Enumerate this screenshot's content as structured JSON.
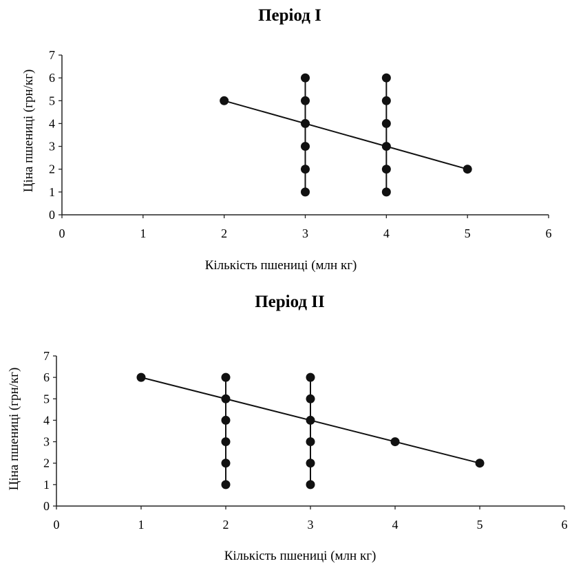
{
  "chart_data": [
    {
      "type": "scatter",
      "title": "Період I",
      "xlabel": "Кількість пшениці (млн кг)",
      "ylabel": "Ціна пшениці (грн/кг)",
      "xlim": [
        0,
        6
      ],
      "ylim": [
        0,
        7
      ],
      "x_ticks": [
        "0",
        "1",
        "2",
        "3",
        "4",
        "5",
        "6"
      ],
      "y_ticks": [
        "0",
        "1",
        "2",
        "3",
        "4",
        "5",
        "6",
        "7"
      ],
      "grid": false,
      "lines": [
        {
          "points": [
            [
              2,
              5
            ],
            [
              5,
              2
            ]
          ]
        },
        {
          "points": [
            [
              3,
              1
            ],
            [
              3,
              6
            ]
          ]
        },
        {
          "points": [
            [
              4,
              1
            ],
            [
              4,
              6
            ]
          ]
        }
      ],
      "points": [
        [
          2,
          5
        ],
        [
          5,
          2
        ],
        [
          3,
          1
        ],
        [
          3,
          2
        ],
        [
          3,
          3
        ],
        [
          3,
          4
        ],
        [
          3,
          5
        ],
        [
          3,
          6
        ],
        [
          4,
          1
        ],
        [
          4,
          2
        ],
        [
          4,
          3
        ],
        [
          4,
          4
        ],
        [
          4,
          5
        ],
        [
          4,
          6
        ]
      ]
    },
    {
      "type": "scatter",
      "title": "Період II",
      "xlabel": "Кількість пшениці (млн кг)",
      "ylabel": "Ціна пшениці (грн/кг)",
      "xlim": [
        0,
        6
      ],
      "ylim": [
        0,
        7
      ],
      "x_ticks": [
        "0",
        "1",
        "2",
        "3",
        "4",
        "5",
        "6"
      ],
      "y_ticks": [
        "0",
        "1",
        "2",
        "3",
        "4",
        "5",
        "6",
        "7"
      ],
      "grid": false,
      "lines": [
        {
          "points": [
            [
              1,
              6
            ],
            [
              5,
              2
            ]
          ]
        },
        {
          "points": [
            [
              2,
              1
            ],
            [
              2,
              6
            ]
          ]
        },
        {
          "points": [
            [
              3,
              1
            ],
            [
              3,
              6
            ]
          ]
        }
      ],
      "points": [
        [
          1,
          6
        ],
        [
          4,
          3
        ],
        [
          5,
          2
        ],
        [
          2,
          1
        ],
        [
          2,
          2
        ],
        [
          2,
          3
        ],
        [
          2,
          4
        ],
        [
          2,
          5
        ],
        [
          2,
          6
        ],
        [
          3,
          1
        ],
        [
          3,
          2
        ],
        [
          3,
          3
        ],
        [
          3,
          4
        ],
        [
          3,
          5
        ],
        [
          3,
          6
        ]
      ]
    }
  ]
}
